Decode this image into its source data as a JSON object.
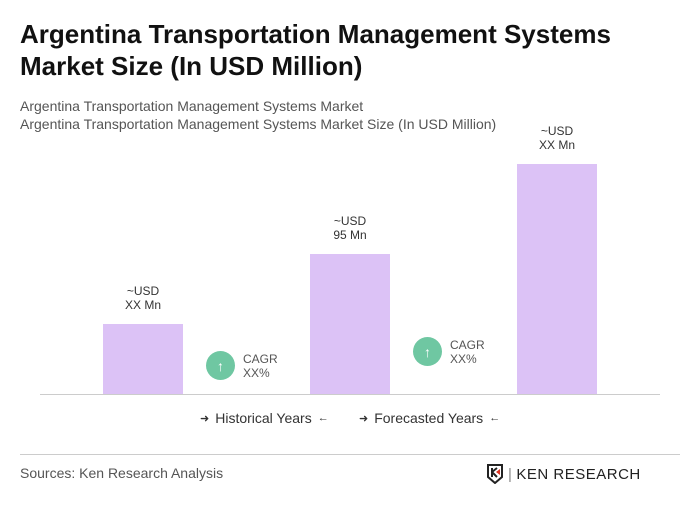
{
  "title": "Argentina Transportation Management Systems Market Size (In USD Million)",
  "subtitle1": "Argentina Transportation Management Systems Market",
  "subtitle2": "Argentina Transportation Management Systems Market Size (In USD Million)",
  "chart_data": {
    "type": "bar",
    "categories": [
      "",
      "",
      ""
    ],
    "values": [
      47.5,
      95,
      156
    ],
    "data_labels": [
      [
        "~USD",
        "XX Mn"
      ],
      [
        "~USD",
        "95 Mn"
      ],
      [
        "~USD",
        "XX Mn"
      ]
    ],
    "bar_color": "#dcc2f6",
    "cagr": [
      {
        "label": "CAGR",
        "value": "XX%"
      },
      {
        "label": "CAGR",
        "value": "XX%"
      }
    ],
    "cagr_color": "#6fc7a2",
    "legend": [
      "Historical Years",
      "Forecasted Years"
    ]
  },
  "footer": {
    "source": "Sources: Ken Research Analysis",
    "logo_text": "KEN RESEARCH"
  }
}
